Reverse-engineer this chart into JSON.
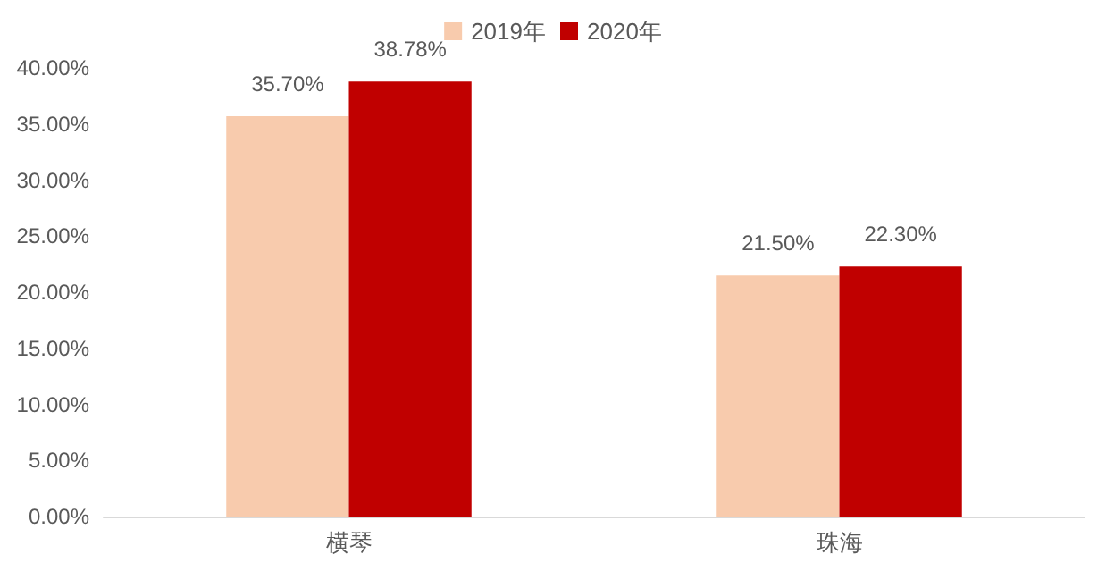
{
  "chart_data": {
    "type": "bar",
    "categories": [
      "横琴",
      "珠海"
    ],
    "series": [
      {
        "name": "2019年",
        "color": "#f8cbad",
        "values": [
          35.7,
          21.5
        ],
        "value_labels": [
          "35.70%",
          "21.50%"
        ]
      },
      {
        "name": "2020年",
        "color": "#c00000",
        "values": [
          38.78,
          22.3
        ],
        "value_labels": [
          "38.78%",
          "22.30%"
        ]
      }
    ],
    "ylim": [
      0,
      40
    ],
    "yticks": [
      {
        "value": 0,
        "label": "0.00%"
      },
      {
        "value": 5,
        "label": "5.00%"
      },
      {
        "value": 10,
        "label": "10.00%"
      },
      {
        "value": 15,
        "label": "15.00%"
      },
      {
        "value": 20,
        "label": "20.00%"
      },
      {
        "value": 25,
        "label": "25.00%"
      },
      {
        "value": 30,
        "label": "30.00%"
      },
      {
        "value": 35,
        "label": "35.00%"
      },
      {
        "value": 40,
        "label": "40.00%"
      }
    ],
    "legend": "top",
    "grid": false
  }
}
